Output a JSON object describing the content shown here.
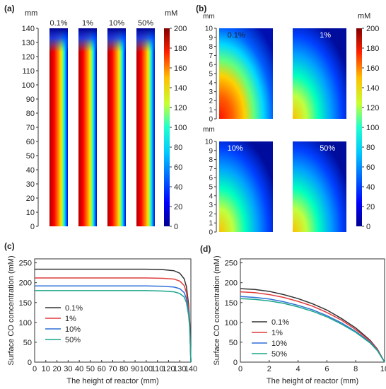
{
  "panels": {
    "a": {
      "label": "(a)",
      "yunit": "mm",
      "cbar_unit": "mM",
      "yticks": [
        "0",
        "10",
        "20",
        "30",
        "40",
        "50",
        "60",
        "70",
        "80",
        "90",
        "100",
        "110",
        "120",
        "130",
        "140"
      ],
      "columns": [
        "0.1%",
        "1%",
        "10%",
        "50%"
      ]
    },
    "b": {
      "label": "(b)",
      "yunit_top": "mm",
      "yunit_bottom": "mm",
      "cbar_unit": "mM",
      "yticks": [
        "0",
        "1",
        "2",
        "3",
        "4",
        "5",
        "6",
        "7",
        "8",
        "9",
        "10"
      ],
      "maps": [
        "0.1%",
        "1%",
        "10%",
        "50%"
      ]
    },
    "c": {
      "label": "(c)"
    },
    "d": {
      "label": "(d)"
    }
  },
  "colorbar": {
    "ticks": [
      "0",
      "20",
      "40",
      "60",
      "80",
      "100",
      "120",
      "140",
      "160",
      "180",
      "200"
    ],
    "colors": [
      "#00008f",
      "#0000ff",
      "#0080ff",
      "#00ffff",
      "#80ff80",
      "#ffff00",
      "#ff8000",
      "#ff0000",
      "#800000"
    ]
  },
  "chart_data": [
    {
      "type": "line",
      "id": "c",
      "xlabel": "The height of reactor (mm)",
      "ylabel": "Surface CO concentration (mM)",
      "xlim": [
        0,
        140
      ],
      "ylim": [
        0,
        260
      ],
      "xticks": [
        "0",
        "10",
        "20",
        "30",
        "40",
        "50",
        "60",
        "70",
        "80",
        "90",
        "100",
        "110",
        "120",
        "130",
        "140"
      ],
      "yticks": [
        "0",
        "50",
        "100",
        "150",
        "200",
        "250"
      ],
      "legend_position": "middle-left",
      "series": [
        {
          "name": "0.1%",
          "color": "#333333",
          "x": [
            0,
            100,
            115,
            125,
            130,
            134,
            136,
            138,
            139,
            140
          ],
          "y": [
            234,
            234,
            233,
            230,
            224,
            210,
            190,
            145,
            100,
            0
          ]
        },
        {
          "name": "1%",
          "color": "#e03c3c",
          "x": [
            0,
            100,
            115,
            125,
            130,
            134,
            136,
            138,
            139,
            140
          ],
          "y": [
            212,
            212,
            211,
            209,
            204,
            193,
            175,
            135,
            95,
            0
          ]
        },
        {
          "name": "10%",
          "color": "#2f6fd8",
          "x": [
            0,
            100,
            115,
            125,
            130,
            134,
            136,
            138,
            139,
            140
          ],
          "y": [
            192,
            192,
            191,
            189,
            185,
            175,
            160,
            125,
            88,
            0
          ]
        },
        {
          "name": "50%",
          "color": "#1aa58a",
          "x": [
            0,
            100,
            115,
            125,
            130,
            134,
            136,
            138,
            139,
            140
          ],
          "y": [
            180,
            180,
            179,
            177,
            173,
            164,
            150,
            118,
            85,
            0
          ]
        }
      ]
    },
    {
      "type": "line",
      "id": "d",
      "xlabel": "The height of reactor (mm)",
      "ylabel": "Surface CO concentration (mM)",
      "xlim": [
        0,
        10
      ],
      "ylim": [
        0,
        260
      ],
      "xticks": [
        "0",
        "2",
        "4",
        "6",
        "8",
        "10"
      ],
      "yticks": [
        "0",
        "50",
        "100",
        "150",
        "200",
        "250"
      ],
      "legend_position": "lower-left",
      "series": [
        {
          "name": "0.1%",
          "color": "#333333",
          "x": [
            0,
            1,
            2,
            3,
            4,
            5,
            6,
            7,
            8,
            9,
            9.5,
            10
          ],
          "y": [
            185,
            183,
            178,
            170,
            160,
            147,
            131,
            110,
            86,
            55,
            33,
            0
          ]
        },
        {
          "name": "1%",
          "color": "#e03c3c",
          "x": [
            0,
            1,
            2,
            3,
            4,
            5,
            6,
            7,
            8,
            9,
            9.5,
            10
          ],
          "y": [
            177,
            175,
            170,
            163,
            153,
            141,
            125,
            106,
            82,
            53,
            32,
            0
          ]
        },
        {
          "name": "10%",
          "color": "#2f6fd8",
          "x": [
            0,
            1,
            2,
            3,
            4,
            5,
            6,
            7,
            8,
            9,
            9.5,
            10
          ],
          "y": [
            165,
            163,
            159,
            152,
            143,
            132,
            117,
            99,
            77,
            50,
            30,
            0
          ]
        },
        {
          "name": "50%",
          "color": "#1aa58a",
          "x": [
            0,
            1,
            2,
            3,
            4,
            5,
            6,
            7,
            8,
            9,
            9.5,
            10
          ],
          "y": [
            160,
            158,
            154,
            148,
            139,
            128,
            114,
            96,
            75,
            48,
            29,
            0
          ]
        }
      ]
    }
  ]
}
